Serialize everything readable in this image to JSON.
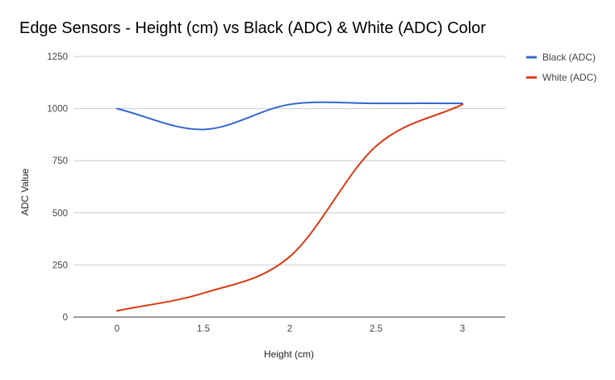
{
  "chart_data": {
    "type": "line",
    "title": "Edge Sensors - Height (cm) vs Black (ADC) & White (ADC) Color",
    "xlabel": "Height (cm)",
    "ylabel": "ADC Value",
    "categories": [
      "0",
      "1.5",
      "2",
      "2.5",
      "3"
    ],
    "ylim": [
      0,
      1250
    ],
    "yticks": [
      0,
      250,
      500,
      750,
      1000,
      1250
    ],
    "grid": true,
    "legend_position": "right",
    "series": [
      {
        "name": "Black (ADC)",
        "color": "#3366cc",
        "values": [
          1000,
          900,
          1020,
          1025,
          1025
        ]
      },
      {
        "name": "White (ADC)",
        "color": "#dc3912",
        "values": [
          30,
          115,
          290,
          820,
          1020
        ]
      }
    ]
  }
}
